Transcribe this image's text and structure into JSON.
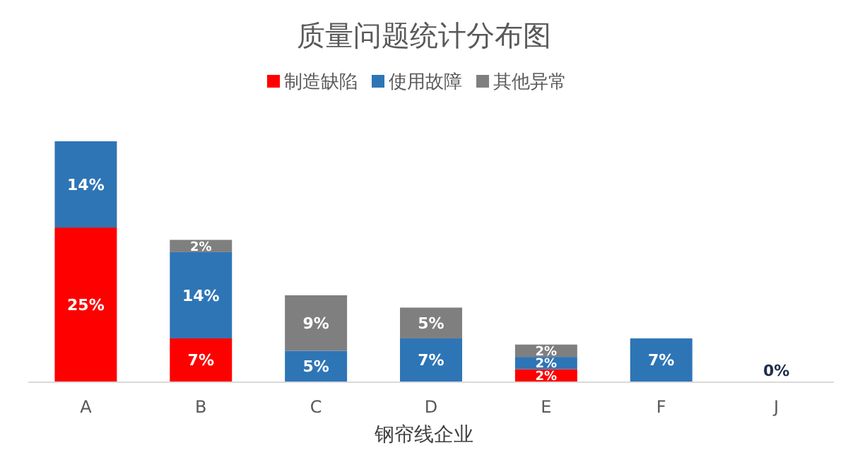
{
  "chart_data": {
    "type": "bar",
    "stacked": true,
    "title": "质量问题统计分布图",
    "xlabel": "钢帘线企业",
    "legend": "top",
    "categories": [
      "A",
      "B",
      "C",
      "D",
      "E",
      "F",
      "J"
    ],
    "series": [
      {
        "name": "制造缺陷",
        "color": "#ff0000",
        "values": [
          25,
          7,
          null,
          null,
          2,
          null,
          null
        ],
        "value_labels": [
          "25%",
          "7%",
          null,
          null,
          "2%",
          null,
          null
        ]
      },
      {
        "name": "使用故障",
        "color": "#2e75b6",
        "values": [
          14,
          14,
          5,
          7,
          2,
          7,
          0
        ],
        "value_labels": [
          "14%",
          "14%",
          "5%",
          "7%",
          "2%",
          "7%",
          "0%"
        ]
      },
      {
        "name": "其他异常",
        "color": "#7f7f7f",
        "values": [
          null,
          2,
          9,
          5,
          2,
          null,
          null
        ],
        "value_labels": [
          null,
          "2%",
          "9%",
          "5%",
          "2%",
          null,
          null
        ]
      }
    ]
  }
}
